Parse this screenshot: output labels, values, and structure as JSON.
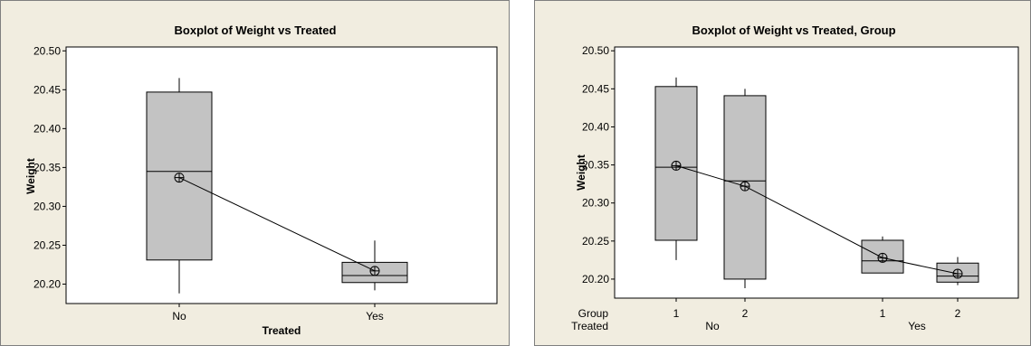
{
  "chart_data": [
    {
      "type": "boxplot",
      "title": "Boxplot of Weight vs Treated",
      "xlabel": "Treated",
      "ylabel": "Weight",
      "ylim": [
        20.175,
        20.505
      ],
      "yticks": [
        "20.20",
        "20.25",
        "20.30",
        "20.35",
        "20.40",
        "20.45",
        "20.50"
      ],
      "grid": false,
      "connect_means": true,
      "categories": [
        "No",
        "Yes"
      ],
      "boxes": [
        {
          "category": "No",
          "whisker_low": 20.188,
          "q1": 20.231,
          "median": 20.345,
          "q3": 20.447,
          "whisker_high": 20.465,
          "mean": 20.337
        },
        {
          "category": "Yes",
          "whisker_low": 20.192,
          "q1": 20.202,
          "median": 20.211,
          "q3": 20.228,
          "whisker_high": 20.256,
          "mean": 20.217
        }
      ]
    },
    {
      "type": "boxplot",
      "title": "Boxplot of Weight vs Treated, Group",
      "xlabel": "",
      "ylabel": "Weight",
      "ylim": [
        20.175,
        20.505
      ],
      "yticks": [
        "20.20",
        "20.25",
        "20.30",
        "20.35",
        "20.40",
        "20.45",
        "20.50"
      ],
      "grid": false,
      "connect_means": true,
      "row_labels": [
        "Group",
        "Treated"
      ],
      "groups": [
        {
          "treated": "No",
          "groups": [
            "1",
            "2"
          ]
        },
        {
          "treated": "Yes",
          "groups": [
            "1",
            "2"
          ]
        }
      ],
      "boxes": [
        {
          "treated": "No",
          "group": "1",
          "whisker_low": 20.225,
          "q1": 20.251,
          "median": 20.347,
          "q3": 20.453,
          "whisker_high": 20.465,
          "mean": 20.349
        },
        {
          "treated": "No",
          "group": "2",
          "whisker_low": 20.188,
          "q1": 20.2,
          "median": 20.329,
          "q3": 20.441,
          "whisker_high": 20.45,
          "mean": 20.322
        },
        {
          "treated": "Yes",
          "group": "1",
          "whisker_low": 20.208,
          "q1": 20.208,
          "median": 20.224,
          "q3": 20.251,
          "whisker_high": 20.256,
          "mean": 20.228
        },
        {
          "treated": "Yes",
          "group": "2",
          "whisker_low": 20.192,
          "q1": 20.196,
          "median": 20.204,
          "q3": 20.221,
          "whisker_high": 20.229,
          "mean": 20.207
        }
      ]
    }
  ]
}
